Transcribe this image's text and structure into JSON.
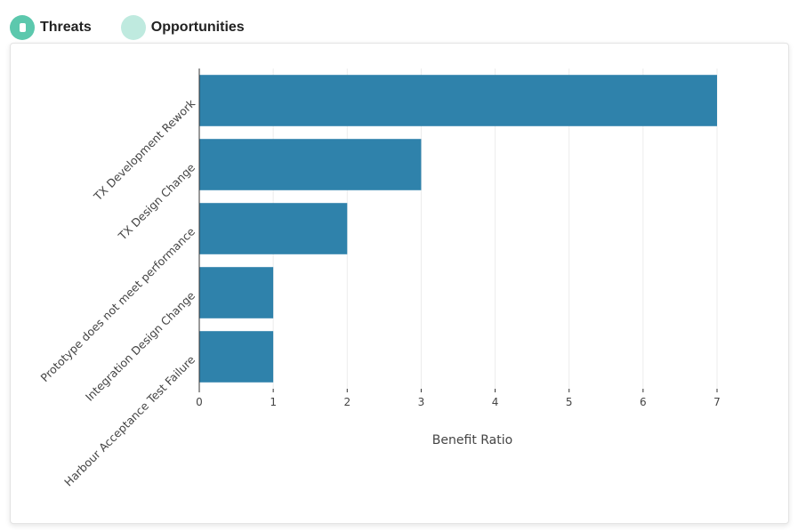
{
  "toggles": {
    "threats_label": "Threats",
    "opportunities_label": "Opportunities",
    "threats_on": true,
    "opportunities_on": false
  },
  "colors": {
    "bar": "#2f82ab",
    "toggle_on": "#5cc8ad",
    "toggle_off": "#bfeadf",
    "grid": "#ececec",
    "axis": "#333333",
    "text": "#444444"
  },
  "chart_data": {
    "type": "bar",
    "orientation": "horizontal",
    "categories": [
      "TX Development Rework",
      "TX Design Change",
      "Prototype does not meet performance",
      "Integration Design Change",
      "Harbour Acceptance Test Failure"
    ],
    "values": [
      7,
      3,
      2,
      1,
      1
    ],
    "title": "",
    "xlabel": "Benefit Ratio",
    "ylabel": "",
    "xlim": [
      0,
      7
    ],
    "xticks": [
      "0",
      "1",
      "2",
      "3",
      "4",
      "5",
      "6",
      "7"
    ],
    "grid": true
  }
}
